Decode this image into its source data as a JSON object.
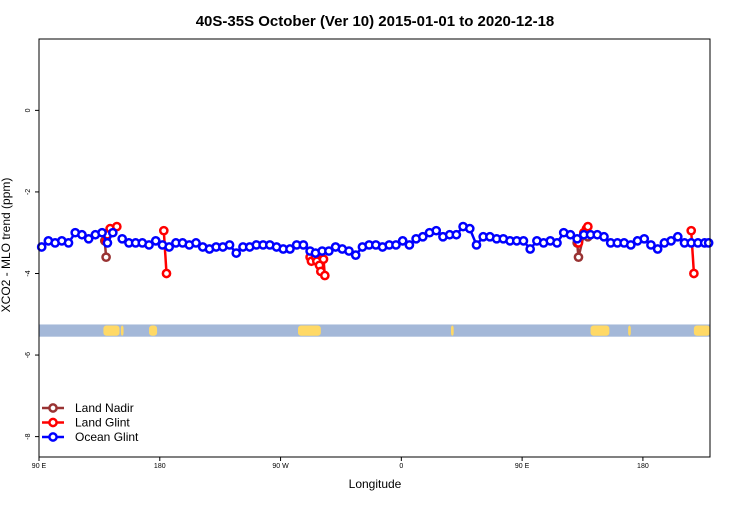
{
  "colors": {
    "land_nadir": "#993333",
    "land_glint": "#ff0000",
    "ocean_glint": "#0000ff",
    "land_band": "#ffd966",
    "ocean_band": "#a4b8d8"
  },
  "chart_data": {
    "type": "line",
    "title": "40S-35S October (Ver 10)   2015-01-01 to 2020-12-18",
    "xlabel": "Longitude",
    "ylabel": "XCO2 - MLO trend (ppm)",
    "xlim": [
      90,
      590
    ],
    "ylim": [
      -8.5,
      1.75
    ],
    "x_ticks": [
      {
        "value": 90,
        "label": "90 E"
      },
      {
        "value": 180,
        "label": "180"
      },
      {
        "value": 270,
        "label": "90 W"
      },
      {
        "value": 360,
        "label": "0"
      },
      {
        "value": 450,
        "label": "90 E"
      },
      {
        "value": 540,
        "label": "180"
      }
    ],
    "y_ticks": [
      {
        "value": 0,
        "label": "0"
      },
      {
        "value": -2,
        "label": "-2"
      },
      {
        "value": -4,
        "label": "-4"
      },
      {
        "value": -6,
        "label": "-6"
      },
      {
        "value": -8,
        "label": "-8"
      }
    ],
    "grid": false,
    "legend_position": "bottom-left",
    "land_mask": {
      "y_range": [
        -5.55,
        -5.25
      ],
      "land_segments": [
        [
          138,
          150
        ],
        [
          151,
          153
        ],
        [
          172,
          178
        ],
        [
          283,
          300
        ],
        [
          397,
          399
        ],
        [
          501,
          515
        ],
        [
          529,
          531
        ],
        [
          578,
          590
        ]
      ]
    },
    "series": [
      {
        "name": "Land Nadir",
        "color_key": "land_nadir",
        "points": [
          [
            139,
            -3.2
          ],
          [
            140,
            -3.6
          ],
          [
            491,
            -3.25
          ],
          [
            492,
            -3.6
          ],
          [
            496,
            -3.05
          ],
          [
            499,
            -3.1
          ]
        ]
      },
      {
        "name": "Land Glint",
        "color_key": "land_glint",
        "points": [
          [
            140,
            -3.2
          ],
          [
            141,
            -3.05
          ],
          [
            143,
            -2.9
          ],
          [
            148,
            -2.85
          ],
          [
            183,
            -2.95
          ],
          [
            185,
            -4.0
          ],
          [
            292,
            -3.6
          ],
          [
            293,
            -3.7
          ],
          [
            296,
            -3.6
          ],
          [
            297,
            -3.7
          ],
          [
            299,
            -3.8
          ],
          [
            300,
            -3.95
          ],
          [
            302,
            -3.65
          ],
          [
            303,
            -4.05
          ],
          [
            492,
            -3.25
          ],
          [
            496,
            -3.0
          ],
          [
            498,
            -2.9
          ],
          [
            499,
            -2.85
          ],
          [
            576,
            -2.95
          ],
          [
            578,
            -4.0
          ]
        ]
      },
      {
        "name": "Ocean Glint",
        "color_key": "ocean_glint",
        "points": [
          [
            92,
            -3.35
          ],
          [
            97,
            -3.2
          ],
          [
            102,
            -3.25
          ],
          [
            107,
            -3.2
          ],
          [
            112,
            -3.25
          ],
          [
            117,
            -3.0
          ],
          [
            122,
            -3.05
          ],
          [
            127,
            -3.15
          ],
          [
            132,
            -3.05
          ],
          [
            137,
            -3.0
          ],
          [
            141,
            -3.25
          ],
          [
            145,
            -3.0
          ],
          [
            152,
            -3.15
          ],
          [
            157,
            -3.25
          ],
          [
            162,
            -3.25
          ],
          [
            167,
            -3.25
          ],
          [
            172,
            -3.3
          ],
          [
            177,
            -3.2
          ],
          [
            182,
            -3.3
          ],
          [
            187,
            -3.35
          ],
          [
            192,
            -3.25
          ],
          [
            197,
            -3.25
          ],
          [
            202,
            -3.3
          ],
          [
            207,
            -3.25
          ],
          [
            212,
            -3.35
          ],
          [
            217,
            -3.4
          ],
          [
            222,
            -3.35
          ],
          [
            227,
            -3.35
          ],
          [
            232,
            -3.3
          ],
          [
            237,
            -3.5
          ],
          [
            242,
            -3.35
          ],
          [
            247,
            -3.35
          ],
          [
            252,
            -3.3
          ],
          [
            257,
            -3.3
          ],
          [
            262,
            -3.3
          ],
          [
            267,
            -3.35
          ],
          [
            272,
            -3.4
          ],
          [
            277,
            -3.4
          ],
          [
            282,
            -3.3
          ],
          [
            287,
            -3.3
          ],
          [
            292,
            -3.45
          ],
          [
            296,
            -3.5
          ],
          [
            301,
            -3.45
          ],
          [
            306,
            -3.45
          ],
          [
            311,
            -3.35
          ],
          [
            316,
            -3.4
          ],
          [
            321,
            -3.45
          ],
          [
            326,
            -3.55
          ],
          [
            331,
            -3.35
          ],
          [
            336,
            -3.3
          ],
          [
            341,
            -3.3
          ],
          [
            346,
            -3.35
          ],
          [
            351,
            -3.3
          ],
          [
            356,
            -3.3
          ],
          [
            361,
            -3.2
          ],
          [
            366,
            -3.3
          ],
          [
            371,
            -3.15
          ],
          [
            376,
            -3.1
          ],
          [
            381,
            -3.0
          ],
          [
            386,
            -2.95
          ],
          [
            391,
            -3.1
          ],
          [
            396,
            -3.05
          ],
          [
            401,
            -3.05
          ],
          [
            406,
            -2.85
          ],
          [
            411,
            -2.9
          ],
          [
            416,
            -3.3
          ],
          [
            421,
            -3.1
          ],
          [
            426,
            -3.1
          ],
          [
            431,
            -3.15
          ],
          [
            436,
            -3.15
          ],
          [
            441,
            -3.2
          ],
          [
            446,
            -3.2
          ],
          [
            451,
            -3.2
          ],
          [
            456,
            -3.4
          ],
          [
            461,
            -3.2
          ],
          [
            466,
            -3.25
          ],
          [
            471,
            -3.2
          ],
          [
            476,
            -3.25
          ],
          [
            481,
            -3.0
          ],
          [
            486,
            -3.05
          ],
          [
            491,
            -3.15
          ],
          [
            496,
            -3.05
          ],
          [
            501,
            -3.05
          ],
          [
            506,
            -3.05
          ],
          [
            511,
            -3.1
          ],
          [
            516,
            -3.25
          ],
          [
            521,
            -3.25
          ],
          [
            526,
            -3.25
          ],
          [
            531,
            -3.3
          ],
          [
            536,
            -3.2
          ],
          [
            541,
            -3.15
          ],
          [
            546,
            -3.3
          ],
          [
            551,
            -3.4
          ],
          [
            556,
            -3.25
          ],
          [
            561,
            -3.2
          ],
          [
            566,
            -3.1
          ],
          [
            571,
            -3.25
          ],
          [
            576,
            -3.25
          ],
          [
            581,
            -3.25
          ],
          [
            586,
            -3.25
          ],
          [
            589,
            -3.25
          ]
        ]
      }
    ]
  }
}
